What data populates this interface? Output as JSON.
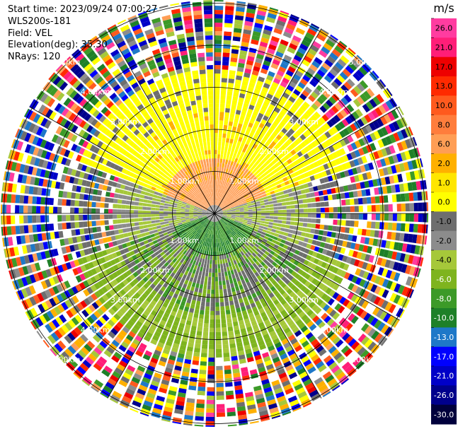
{
  "header": {
    "start_time": "Start time: 2023/09/24 07:00:27",
    "instrument": "WLS200s-181",
    "field": "Field: VEL",
    "elevation": "Elevation(deg): 35.30",
    "nrays": "NRays: 120"
  },
  "chart_data": {
    "type": "heatmap",
    "projection": "polar (PPI)",
    "field": "VEL",
    "units": "m/s",
    "nrays": 120,
    "range_rings": [
      "1.00km",
      "2.00km",
      "3.00km",
      "4.00km",
      "5.00km"
    ],
    "colorbar": {
      "label": "m/s",
      "ticks": [
        "26.0",
        "21.0",
        "17.0",
        "13.0",
        "10.0",
        "8.0",
        "6.0",
        "2.0",
        "1.0",
        "0.0",
        "-1.0",
        "-2.0",
        "-4.0",
        "-6.0",
        "-8.0",
        "-10.0",
        "-13.0",
        "-17.0",
        "-21.0",
        "-26.0",
        "-30.0"
      ],
      "colors": [
        "#ff3ca0",
        "#ff1e78",
        "#ee0000",
        "#ff2a00",
        "#ff5a1e",
        "#ff7d3c",
        "#ff9e55",
        "#ffb000",
        "#ffe600",
        "#ffff00",
        "#6e6e6e",
        "#8c8c8c",
        "#a6c83a",
        "#7eb41e",
        "#3c9a28",
        "#1e8028",
        "#1e78c8",
        "#0000ff",
        "#0000c8",
        "#00008c",
        "#00003c"
      ]
    },
    "sectors": [
      {
        "name": "near-north",
        "dominant": "yellow/orange",
        "approx_velocity": "2 to 8"
      },
      {
        "name": "near-south",
        "dominant": "green",
        "approx_velocity": "-2 to -8"
      },
      {
        "name": "west/east near",
        "dominant": "gray",
        "approx_velocity": "-1 to 1"
      },
      {
        "name": "outer ring",
        "dominant": "noise (mixed colors)",
        "approx_velocity": "-30 to 26"
      }
    ]
  }
}
